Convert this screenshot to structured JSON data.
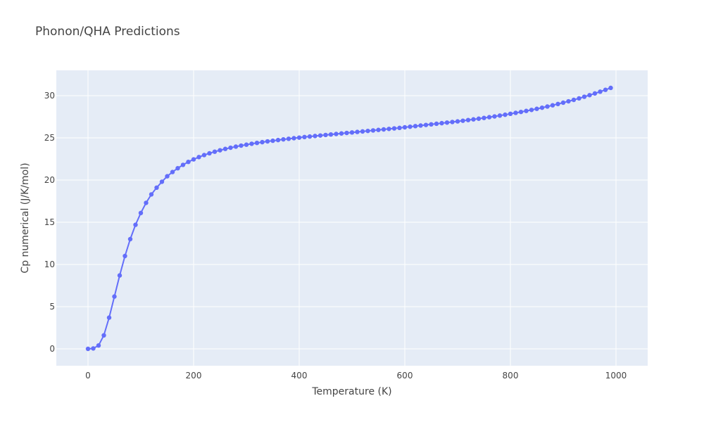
{
  "chart_data": {
    "type": "line",
    "title": "Phonon/QHA Predictions",
    "xlabel": "Temperature (K)",
    "ylabel": "Cp numerical (J/K/mol)",
    "xlim": [
      -60,
      1060
    ],
    "ylim": [
      -2,
      33
    ],
    "xticks": [
      0,
      200,
      400,
      600,
      800,
      1000
    ],
    "yticks": [
      0,
      5,
      10,
      15,
      20,
      25,
      30
    ],
    "grid": true,
    "legend": "none",
    "colors": {
      "plot_bg": "#e5ecf6",
      "series": "#636efa"
    },
    "series": [
      {
        "mode": "lines+markers",
        "x": [
          0,
          10,
          20,
          30,
          40,
          50,
          60,
          70,
          80,
          90,
          100,
          110,
          120,
          130,
          140,
          150,
          160,
          170,
          180,
          190,
          200,
          210,
          220,
          230,
          240,
          250,
          260,
          270,
          280,
          290,
          300,
          310,
          320,
          330,
          340,
          350,
          360,
          370,
          380,
          390,
          400,
          410,
          420,
          430,
          440,
          450,
          460,
          470,
          480,
          490,
          500,
          510,
          520,
          530,
          540,
          550,
          560,
          570,
          580,
          590,
          600,
          610,
          620,
          630,
          640,
          650,
          660,
          670,
          680,
          690,
          700,
          710,
          720,
          730,
          740,
          750,
          760,
          770,
          780,
          790,
          800,
          810,
          820,
          830,
          840,
          850,
          860,
          870,
          880,
          890,
          900,
          910,
          920,
          930,
          940,
          950,
          960,
          970,
          980,
          990
        ],
        "y": [
          0,
          0.05,
          0.4,
          1.6,
          3.7,
          6.2,
          8.7,
          11.0,
          13.0,
          14.7,
          16.1,
          17.3,
          18.3,
          19.1,
          19.8,
          20.45,
          20.95,
          21.4,
          21.8,
          22.15,
          22.45,
          22.72,
          22.96,
          23.17,
          23.36,
          23.53,
          23.69,
          23.83,
          23.96,
          24.08,
          24.19,
          24.3,
          24.4,
          24.49,
          24.58,
          24.66,
          24.74,
          24.82,
          24.89,
          24.96,
          25.03,
          25.1,
          25.16,
          25.22,
          25.28,
          25.34,
          25.4,
          25.46,
          25.52,
          25.58,
          25.64,
          25.7,
          25.76,
          25.82,
          25.88,
          25.94,
          26.0,
          26.06,
          26.12,
          26.18,
          26.25,
          26.32,
          26.39,
          26.46,
          26.53,
          26.6,
          26.67,
          26.74,
          26.81,
          26.88,
          26.95,
          27.03,
          27.11,
          27.19,
          27.27,
          27.36,
          27.45,
          27.54,
          27.64,
          27.74,
          27.85,
          27.96,
          28.07,
          28.19,
          28.31,
          28.44,
          28.57,
          28.71,
          28.86,
          29.01,
          29.17,
          29.33,
          29.5,
          29.68,
          29.87,
          30.06,
          30.26,
          30.47,
          30.69,
          30.92
        ]
      }
    ]
  }
}
